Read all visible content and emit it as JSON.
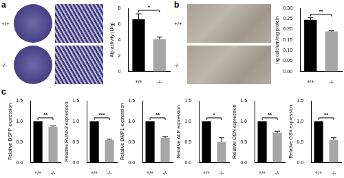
{
  "images": {
    "a": {
      "row_labels": [
        "+/+",
        "-/-"
      ]
    },
    "b": {
      "row_labels": [
        "+/+",
        "-/-"
      ]
    }
  },
  "panel_labels": [
    "a",
    "b",
    "c"
  ],
  "chart_data": [
    {
      "type": "bar",
      "ylabel": "Alp activity (U/g)",
      "categories": [
        "+/+",
        "-/-"
      ],
      "values": [
        6.6,
        4.1
      ],
      "errors": [
        0.7,
        0.25
      ],
      "colors": [
        "#000000",
        "#a6a6a6"
      ],
      "ylim": [
        0,
        8
      ],
      "yticks": [
        0,
        2,
        4,
        6,
        8
      ],
      "annotation": "*"
    },
    {
      "type": "bar",
      "ylabel": "ng calcium/mg protein",
      "categories": [
        "+/+",
        "-/-"
      ],
      "values": [
        0.245,
        0.19
      ],
      "errors": [
        0.01,
        0.003
      ],
      "colors": [
        "#000000",
        "#a6a6a6"
      ],
      "ylim": [
        0,
        0.3
      ],
      "yticks": [
        {
          "value": 0,
          "label": "0.00"
        },
        0.05,
        {
          "value": 0.1,
          "label": "0.10"
        },
        0.15,
        {
          "value": 0.2,
          "label": "0.20"
        },
        0.25,
        {
          "value": 0.3,
          "label": "0.30"
        }
      ],
      "annotation": "**"
    },
    {
      "type": "bar",
      "ylabel": "Relative DSPP expression",
      "categories": [
        "+/+",
        "-/-"
      ],
      "values": [
        1,
        0.87
      ],
      "errors": [
        0,
        0.02
      ],
      "colors": [
        "#000000",
        "#a6a6a6"
      ],
      "ylim": [
        0,
        1.5
      ],
      "yticks": [
        {
          "value": 0,
          "label": "0.0"
        },
        0.5,
        {
          "value": 1,
          "label": "1.0"
        },
        1.5
      ],
      "annotation": "**"
    },
    {
      "type": "bar",
      "ylabel": "Relative RUNX2 expression",
      "categories": [
        "+/+",
        "-/-"
      ],
      "values": [
        1,
        0.55
      ],
      "errors": [
        0,
        0.02
      ],
      "colors": [
        "#000000",
        "#a6a6a6"
      ],
      "ylim": [
        0,
        1.5
      ],
      "yticks": [
        {
          "value": 0,
          "label": "0.0"
        },
        0.5,
        {
          "value": 1,
          "label": "1.0"
        },
        1.5
      ],
      "annotation": "***"
    },
    {
      "type": "bar",
      "ylabel": "Relative DMP1 expression",
      "categories": [
        "+/+",
        "-/-"
      ],
      "values": [
        1,
        0.6
      ],
      "errors": [
        0,
        0.03
      ],
      "colors": [
        "#000000",
        "#a6a6a6"
      ],
      "ylim": [
        0,
        1.5
      ],
      "yticks": [
        {
          "value": 0,
          "label": "0.0"
        },
        0.5,
        {
          "value": 1,
          "label": "1.0"
        },
        1.5
      ],
      "annotation": "**"
    },
    {
      "type": "bar",
      "ylabel": "Relative ALP expression",
      "categories": [
        "+/+",
        "-/-"
      ],
      "values": [
        1,
        0.5
      ],
      "errors": [
        0,
        0.1
      ],
      "colors": [
        "#000000",
        "#a6a6a6"
      ],
      "ylim": [
        0,
        1.5
      ],
      "yticks": [
        {
          "value": 0,
          "label": "0.0"
        },
        0.5,
        {
          "value": 1,
          "label": "1.0"
        },
        1.5
      ],
      "annotation": "*"
    },
    {
      "type": "bar",
      "ylabel": "Relative OCN expression",
      "categories": [
        "+/+",
        "-/-"
      ],
      "values": [
        1,
        0.72
      ],
      "errors": [
        0,
        0.04
      ],
      "colors": [
        "#000000",
        "#a6a6a6"
      ],
      "ylim": [
        0,
        1.5
      ],
      "yticks": [
        {
          "value": 0,
          "label": "0.0"
        },
        0.5,
        {
          "value": 1,
          "label": "1.0"
        },
        1.5
      ],
      "annotation": "**"
    },
    {
      "type": "bar",
      "ylabel": "Relative OSX expression",
      "categories": [
        "+/+",
        "-/-"
      ],
      "values": [
        1,
        0.55
      ],
      "errors": [
        0,
        0.05
      ],
      "colors": [
        "#000000",
        "#a6a6a6"
      ],
      "ylim": [
        0,
        1.5
      ],
      "yticks": [
        {
          "value": 0,
          "label": "0.0"
        },
        0.5,
        {
          "value": 1,
          "label": "1.0"
        },
        1.5
      ],
      "annotation": "**"
    }
  ]
}
